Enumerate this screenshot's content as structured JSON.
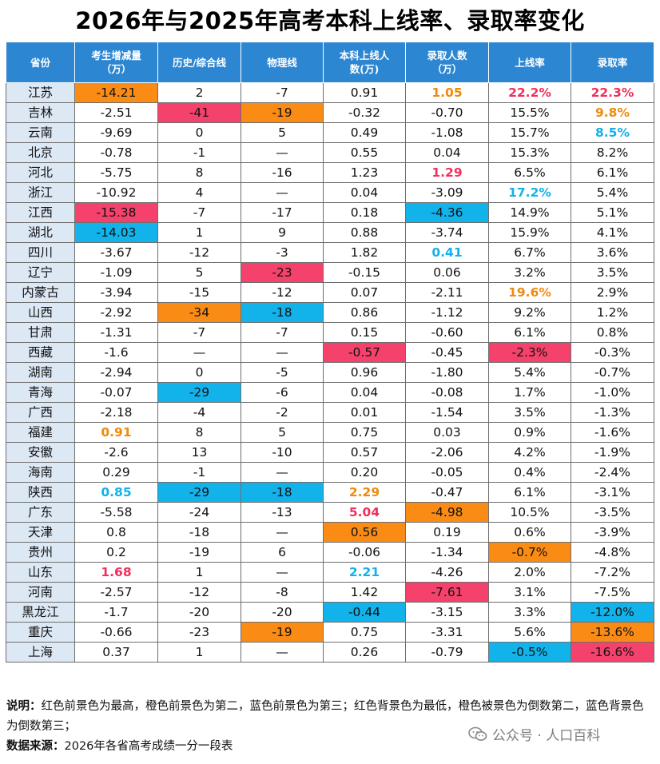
{
  "title": "2026年与2025年高考本科上线率、录取率变化",
  "headers": [
    "省份",
    "考生增减量\n（万）",
    "历史/综合线",
    "物理线",
    "本科上线人\n数(万)",
    "录取人数\n（万）",
    "上线率",
    "录取率"
  ],
  "rows": [
    [
      "江苏",
      "-14.21",
      "2",
      "-7",
      "0.91",
      "1.05",
      "22.2%",
      "22.3%"
    ],
    [
      "吉林",
      "-2.51",
      "-41",
      "-19",
      "-0.32",
      "-0.70",
      "15.5%",
      "9.8%"
    ],
    [
      "云南",
      "-9.69",
      "0",
      "5",
      "0.49",
      "-1.08",
      "15.7%",
      "8.5%"
    ],
    [
      "北京",
      "-0.78",
      "-1",
      "—",
      "0.55",
      "0.04",
      "15.3%",
      "8.2%"
    ],
    [
      "河北",
      "-5.75",
      "8",
      "-16",
      "1.23",
      "1.29",
      "6.5%",
      "6.1%"
    ],
    [
      "浙江",
      "-10.92",
      "4",
      "—",
      "0.04",
      "-3.09",
      "17.2%",
      "5.4%"
    ],
    [
      "江西",
      "-15.38",
      "-7",
      "-17",
      "0.18",
      "-4.36",
      "14.9%",
      "5.1%"
    ],
    [
      "湖北",
      "-14.03",
      "1",
      "9",
      "0.88",
      "-3.74",
      "15.9%",
      "4.1%"
    ],
    [
      "四川",
      "-3.67",
      "-12",
      "-3",
      "1.82",
      "0.41",
      "6.7%",
      "3.6%"
    ],
    [
      "辽宁",
      "-1.09",
      "5",
      "-23",
      "-0.15",
      "0.06",
      "3.2%",
      "3.5%"
    ],
    [
      "内蒙古",
      "-3.94",
      "-15",
      "-12",
      "0.07",
      "-2.11",
      "19.6%",
      "2.9%"
    ],
    [
      "山西",
      "-2.92",
      "-34",
      "-18",
      "0.86",
      "-1.12",
      "9.2%",
      "1.2%"
    ],
    [
      "甘肃",
      "-1.31",
      "-7",
      "-7",
      "0.15",
      "-0.60",
      "6.1%",
      "0.8%"
    ],
    [
      "西藏",
      "-1.6",
      "—",
      "—",
      "-0.57",
      "-0.45",
      "-2.3%",
      "-0.3%"
    ],
    [
      "湖南",
      "-2.94",
      "0",
      "-5",
      "0.96",
      "-1.80",
      "5.4%",
      "-0.7%"
    ],
    [
      "青海",
      "-0.07",
      "-29",
      "-6",
      "0.04",
      "-0.08",
      "1.7%",
      "-1.0%"
    ],
    [
      "广西",
      "-2.18",
      "-4",
      "-2",
      "0.01",
      "-1.54",
      "3.5%",
      "-1.3%"
    ],
    [
      "福建",
      "0.91",
      "8",
      "5",
      "0.75",
      "0.03",
      "0.9%",
      "-1.6%"
    ],
    [
      "安徽",
      "-2.6",
      "13",
      "-10",
      "0.57",
      "-2.06",
      "4.2%",
      "-1.9%"
    ],
    [
      "海南",
      "0.29",
      "-1",
      "—",
      "0.20",
      "-0.05",
      "0.4%",
      "-2.4%"
    ],
    [
      "陕西",
      "0.85",
      "-29",
      "-18",
      "2.29",
      "-0.47",
      "6.1%",
      "-3.1%"
    ],
    [
      "广东",
      "-5.58",
      "-24",
      "-13",
      "5.04",
      "-4.98",
      "10.5%",
      "-3.5%"
    ],
    [
      "天津",
      "0.8",
      "-18",
      "—",
      "0.56",
      "0.19",
      "0.6%",
      "-3.9%"
    ],
    [
      "贵州",
      "0.2",
      "-19",
      "6",
      "-0.06",
      "-1.34",
      "-0.7%",
      "-4.8%"
    ],
    [
      "山东",
      "1.68",
      "1",
      "—",
      "2.21",
      "-4.26",
      "2.0%",
      "-7.2%"
    ],
    [
      "河南",
      "-2.57",
      "-12",
      "-8",
      "1.42",
      "-7.61",
      "3.1%",
      "-7.5%"
    ],
    [
      "黑龙江",
      "-1.7",
      "-20",
      "-20",
      "-0.44",
      "-3.15",
      "3.3%",
      "-12.0%"
    ],
    [
      "重庆",
      "-0.66",
      "-23",
      "-19",
      "0.75",
      "-3.31",
      "5.6%",
      "-13.6%"
    ],
    [
      "上海",
      "0.37",
      "1",
      "—",
      "0.26",
      "-0.79",
      "-0.5%",
      "-16.6%"
    ]
  ],
  "highlights": [
    {
      "row": 0,
      "col": 1,
      "style": "bg-orange"
    },
    {
      "row": 0,
      "col": 5,
      "style": "fg-orange"
    },
    {
      "row": 0,
      "col": 6,
      "style": "fg-red"
    },
    {
      "row": 0,
      "col": 7,
      "style": "fg-red"
    },
    {
      "row": 1,
      "col": 2,
      "style": "bg-red"
    },
    {
      "row": 1,
      "col": 3,
      "style": "bg-orange"
    },
    {
      "row": 1,
      "col": 7,
      "style": "fg-orange"
    },
    {
      "row": 2,
      "col": 7,
      "style": "fg-blue"
    },
    {
      "row": 4,
      "col": 5,
      "style": "fg-red"
    },
    {
      "row": 5,
      "col": 6,
      "style": "fg-blue"
    },
    {
      "row": 6,
      "col": 1,
      "style": "bg-red"
    },
    {
      "row": 6,
      "col": 5,
      "style": "bg-blue"
    },
    {
      "row": 7,
      "col": 1,
      "style": "bg-blue"
    },
    {
      "row": 8,
      "col": 5,
      "style": "fg-blue"
    },
    {
      "row": 9,
      "col": 3,
      "style": "bg-red"
    },
    {
      "row": 10,
      "col": 6,
      "style": "fg-orange"
    },
    {
      "row": 11,
      "col": 2,
      "style": "bg-orange"
    },
    {
      "row": 11,
      "col": 3,
      "style": "bg-blue"
    },
    {
      "row": 13,
      "col": 4,
      "style": "bg-red"
    },
    {
      "row": 13,
      "col": 6,
      "style": "bg-red"
    },
    {
      "row": 15,
      "col": 2,
      "style": "bg-blue"
    },
    {
      "row": 17,
      "col": 1,
      "style": "fg-orange"
    },
    {
      "row": 20,
      "col": 1,
      "style": "fg-blue"
    },
    {
      "row": 20,
      "col": 2,
      "style": "bg-blue"
    },
    {
      "row": 20,
      "col": 3,
      "style": "bg-blue"
    },
    {
      "row": 20,
      "col": 4,
      "style": "fg-orange"
    },
    {
      "row": 21,
      "col": 4,
      "style": "fg-red"
    },
    {
      "row": 21,
      "col": 5,
      "style": "bg-orange"
    },
    {
      "row": 22,
      "col": 4,
      "style": "bg-orange"
    },
    {
      "row": 23,
      "col": 6,
      "style": "bg-orange"
    },
    {
      "row": 24,
      "col": 1,
      "style": "fg-red"
    },
    {
      "row": 24,
      "col": 4,
      "style": "fg-blue"
    },
    {
      "row": 25,
      "col": 5,
      "style": "bg-red"
    },
    {
      "row": 26,
      "col": 4,
      "style": "bg-blue"
    },
    {
      "row": 26,
      "col": 7,
      "style": "bg-blue"
    },
    {
      "row": 27,
      "col": 3,
      "style": "bg-orange"
    },
    {
      "row": 27,
      "col": 7,
      "style": "bg-orange"
    },
    {
      "row": 28,
      "col": 6,
      "style": "bg-blue"
    },
    {
      "row": 28,
      "col": 7,
      "style": "bg-red"
    }
  ],
  "colors": {
    "header_bg": "#2c86d1",
    "province_bg": "#dde8f5",
    "red": "#f4426c",
    "orange": "#fa8c16",
    "blue": "#12b3ea"
  },
  "notes": {
    "explain_label": "说明：",
    "explain_text": "红色前景色为最高，橙色前景色为第二，蓝色前景色为第三；红色背景色为最低，橙色被景色为倒数第二，蓝色背景色为倒数第三；",
    "source_label": "数据来源：",
    "source_text": "2026年各省高考成绩一分一段表"
  },
  "watermark": {
    "icon": "wechat-icon",
    "text": "公众号 · 人口百科"
  }
}
